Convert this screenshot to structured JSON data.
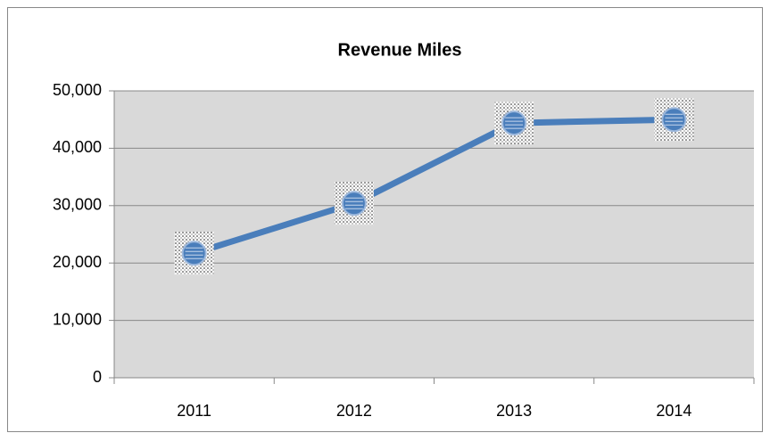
{
  "chart_data": {
    "type": "line",
    "title": "Revenue Miles",
    "categories": [
      "2011",
      "2012",
      "2013",
      "2014"
    ],
    "series": [
      {
        "name": "Revenue Miles",
        "color": "#4a7ebb",
        "values": [
          21700,
          30400,
          44400,
          45000
        ]
      }
    ],
    "ylim": [
      0,
      50000
    ],
    "yticks": [
      0,
      {
        "value": 10000,
        "label": "10,000"
      },
      {
        "value": 20000,
        "label": "20,000"
      },
      {
        "value": 30000,
        "label": "30,000"
      },
      {
        "value": 40000,
        "label": "40,000"
      },
      {
        "value": 50000,
        "label": "50,000"
      }
    ],
    "grid": true
  }
}
